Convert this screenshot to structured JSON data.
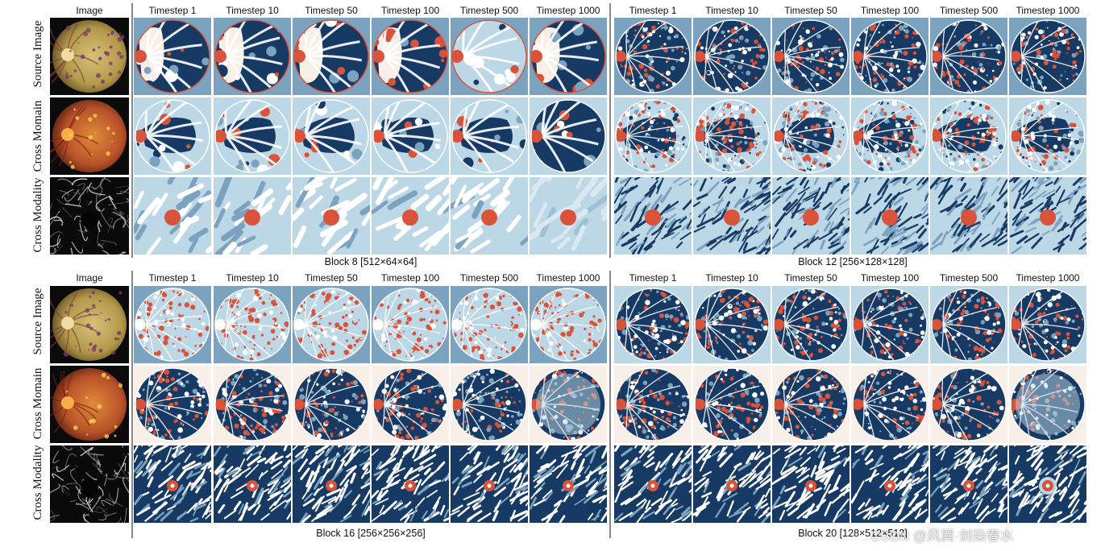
{
  "image_column_label": "Image",
  "row_labels": [
    "Source Image",
    "Cross Momain",
    "Cross Modality"
  ],
  "timesteps": [
    "Timestep 1",
    "Timestep 10",
    "Timestep 50",
    "Timestep 100",
    "Timestep 500",
    "Timestep 1000"
  ],
  "blocks": [
    {
      "caption": "Block 8 [512×64×64]"
    },
    {
      "caption": "Block 12 [256×128×128]"
    },
    {
      "caption": "Block 16 [256×256×256]"
    },
    {
      "caption": "Block 20 [128×512×512]"
    }
  ],
  "watermark": "CSDN @风巽·剑染春水",
  "palette": {
    "navy": "#163a63",
    "steel": "#7ba3bf",
    "light": "#bcd7e6",
    "cream": "#f7efe8",
    "red": "#d9523a"
  }
}
